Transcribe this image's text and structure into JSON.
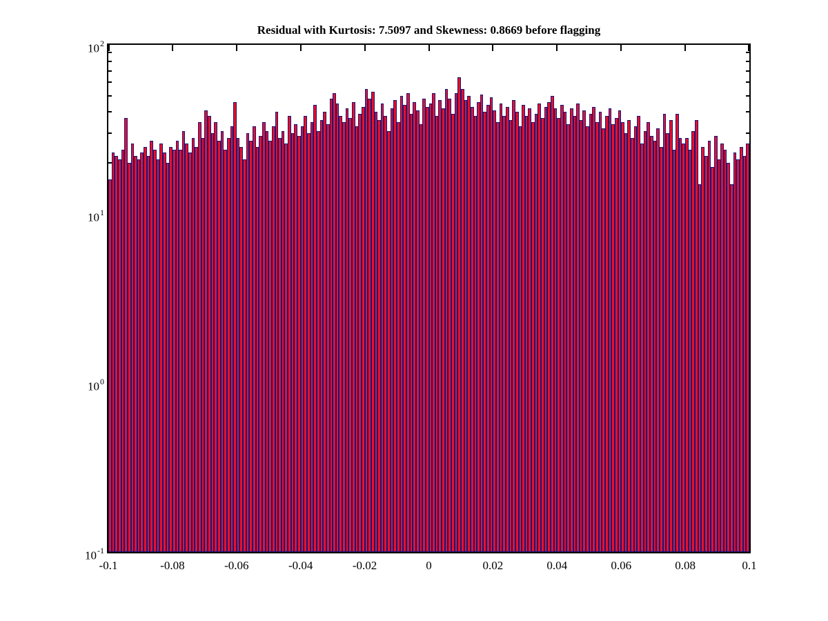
{
  "title": "Residual with Kurtosis: 7.5097 and Skewness: 0.8669 before flagging",
  "axes": {
    "x": {
      "min": -0.1,
      "max": 0.1,
      "tick_labels": [
        "-0.1",
        "-0.08",
        "-0.06",
        "-0.04",
        "-0.02",
        "0",
        "0.02",
        "0.04",
        "0.06",
        "0.08",
        "0.1"
      ]
    },
    "y": {
      "scale": "log10",
      "base_label": "10",
      "major_exponents": [
        2,
        1,
        0,
        -1
      ],
      "minor_multiples": [
        2,
        3,
        4,
        5,
        6,
        7,
        8,
        9
      ]
    }
  },
  "style": {
    "background": "#ffffff",
    "axis_color": "#000000",
    "bar_fill": "#e8102a",
    "bar_edge": "#16167d"
  },
  "chart_data": {
    "type": "bar",
    "subtype": "histogram",
    "title": "Residual with Kurtosis: 7.5097 and Skewness: 0.8669 before flagging",
    "xlabel": "",
    "ylabel": "",
    "yscale": "log",
    "ylim": [
      0.1,
      100
    ],
    "xlim": [
      -0.1,
      0.1
    ],
    "bin_start": -0.1,
    "bin_width": 0.001,
    "n_bins": 200,
    "counts": [
      16,
      23,
      22,
      21,
      24,
      37,
      20,
      26,
      22,
      21,
      23,
      25,
      22,
      27,
      24,
      21,
      26,
      23,
      20,
      25,
      24,
      27,
      24,
      31,
      26,
      23,
      28,
      25,
      35,
      28,
      41,
      38,
      30,
      35,
      27,
      31,
      24,
      28,
      33,
      46,
      28,
      25,
      21,
      30,
      27,
      33,
      25,
      29,
      35,
      31,
      27,
      33,
      40,
      28,
      31,
      26,
      38,
      30,
      34,
      29,
      33,
      38,
      30,
      35,
      44,
      31,
      36,
      40,
      34,
      48,
      52,
      45,
      38,
      35,
      42,
      37,
      46,
      33,
      39,
      43,
      55,
      48,
      53,
      40,
      36,
      45,
      38,
      31,
      42,
      47,
      35,
      50,
      44,
      52,
      39,
      46,
      41,
      34,
      48,
      43,
      45,
      52,
      38,
      47,
      42,
      55,
      48,
      39,
      52,
      64,
      55,
      47,
      50,
      43,
      38,
      46,
      51,
      40,
      44,
      49,
      41,
      35,
      45,
      38,
      43,
      36,
      47,
      40,
      33,
      44,
      38,
      42,
      35,
      39,
      45,
      37,
      43,
      46,
      50,
      42,
      37,
      44,
      40,
      34,
      42,
      38,
      45,
      36,
      41,
      33,
      39,
      43,
      35,
      40,
      32,
      38,
      42,
      34,
      37,
      41,
      35,
      30,
      36,
      28,
      33,
      38,
      26,
      31,
      35,
      29,
      27,
      32,
      25,
      39,
      30,
      36,
      24,
      39,
      28,
      26,
      28,
      24,
      31,
      36,
      15,
      25,
      22,
      27,
      19,
      29,
      21,
      26,
      24,
      20,
      15,
      23,
      21,
      25,
      22,
      26
    ]
  }
}
